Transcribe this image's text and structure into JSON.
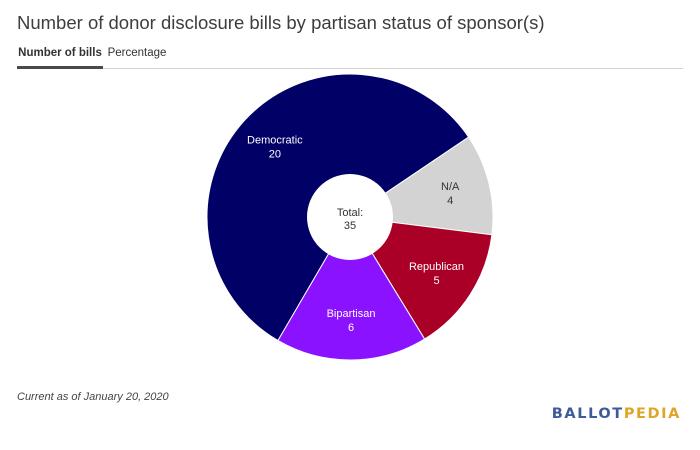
{
  "title": "Number of donor disclosure bills by partisan status of sponsor(s)",
  "tabs": [
    {
      "label": "Number of bills",
      "active": true
    },
    {
      "label": "Percentage",
      "active": false
    }
  ],
  "chart_data": {
    "type": "pie",
    "donut": true,
    "center_label": "Total:",
    "center_value": "35",
    "slices": [
      {
        "label": "N/A",
        "value": 4,
        "color": "#d3d3d3"
      },
      {
        "label": "Republican",
        "value": 5,
        "color": "#aa0027"
      },
      {
        "label": "Bipartisan",
        "value": 6,
        "color": "#8a12ff"
      },
      {
        "label": "Democratic",
        "value": 20,
        "color": "#000066"
      }
    ]
  },
  "footnote": "Current as of January 20, 2020",
  "logo": {
    "part1": "BALLOT",
    "part2": "PEDIA",
    "color1": "#3d5a99",
    "color2": "#e0a526"
  }
}
